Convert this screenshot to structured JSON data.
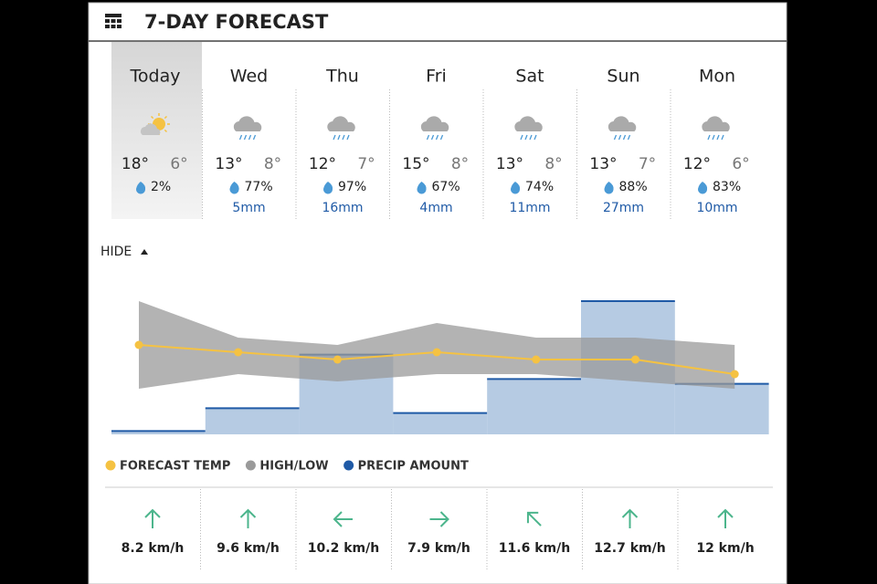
{
  "header": {
    "title": "7-DAY FORECAST"
  },
  "toggle": "HIDE",
  "chart_data": {
    "type": "combo",
    "categories": [
      "Today",
      "Wed",
      "Thu",
      "Fri",
      "Sat",
      "Sun",
      "Mon"
    ],
    "ylim": [
      0,
      20
    ],
    "y2lim": [
      0,
      30
    ],
    "series": [
      {
        "name": "FORECAST TEMP",
        "color": "#f5c242",
        "values": [
          12,
          11,
          10,
          11,
          10,
          10,
          8
        ]
      },
      {
        "name": "HIGH/LOW",
        "color": "#9a9a9a",
        "values": [
          18,
          13,
          12,
          15,
          13,
          13,
          12
        ],
        "value_labels": [
          "18°",
          "13°",
          "12°",
          "15°",
          "13°",
          "13°",
          "12°"
        ],
        "low": [
          6,
          8,
          7,
          8,
          8,
          7,
          6
        ],
        "low_labels": [
          "6°",
          "8°",
          "7°",
          "8°",
          "8°",
          "7°",
          "6°"
        ]
      },
      {
        "name": "PRECIP AMOUNT",
        "color": "#1f5aa6",
        "axis": "y2",
        "values": [
          0.3,
          5,
          16,
          4,
          11,
          27,
          10
        ],
        "value_labels": [
          null,
          "5mm",
          "16mm",
          "4mm",
          "11mm",
          "27mm",
          "10mm"
        ]
      }
    ],
    "precip_chance": {
      "values": [
        2,
        77,
        97,
        67,
        74,
        88,
        83
      ],
      "value_labels": [
        "2%",
        "77%",
        "97%",
        "67%",
        "74%",
        "88%",
        "83%"
      ]
    }
  },
  "wind": {
    "values": [
      8.2,
      9.6,
      10.2,
      7.9,
      11.6,
      12.7,
      12
    ],
    "value_labels": [
      "8.2 km/h",
      "9.6 km/h",
      "10.2 km/h",
      "7.9 km/h",
      "11.6 km/h",
      "12.7 km/h",
      "12 km/h"
    ],
    "directions": [
      0,
      0,
      270,
      90,
      315,
      0,
      0
    ]
  }
}
